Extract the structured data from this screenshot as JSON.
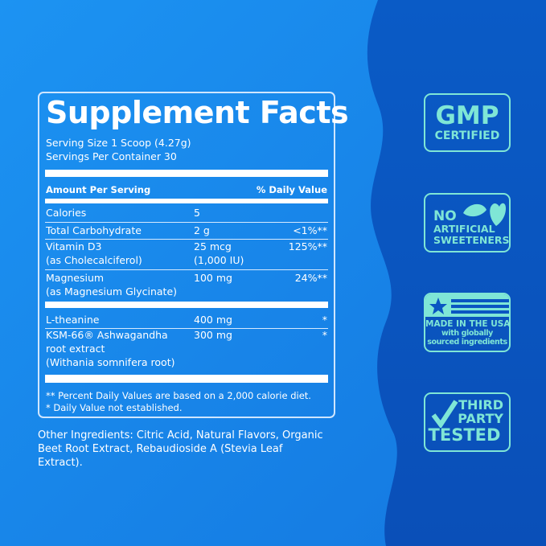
{
  "colors": {
    "background": "#1b8ff0",
    "wave": "#0a56c2",
    "badge": "#7fe6d6"
  },
  "facts": {
    "title": "Supplement Facts",
    "serving_size": "Serving Size 1 Scoop (4.27g)",
    "servings_per_container": "Servings Per Container 30",
    "header_amount": "Amount Per Serving",
    "header_dv": "% Daily Value",
    "rows": [
      {
        "name": "Calories",
        "amount": "5",
        "dv": ""
      },
      {
        "name": "Total Carbohydrate",
        "amount": "2 g",
        "dv": "<1%**"
      },
      {
        "name": "Vitamin D3",
        "name2": "(as Cholecalciferol)",
        "amount": "25 mcg",
        "amount2": "(1,000 IU)",
        "dv": "125%**"
      },
      {
        "name": "Magnesium",
        "name2": "(as Magnesium Glycinate)",
        "amount": "100 mg",
        "dv": "24%**"
      },
      {
        "name": "L-theanine",
        "amount": "400 mg",
        "dv": "*"
      },
      {
        "name": "KSM-66® Ashwagandha",
        "name2": "root extract",
        "name3": "(Withania somnifera root)",
        "amount": "300 mg",
        "dv": "*"
      }
    ],
    "footnote1": "** Percent Daily Values are based on a 2,000 calorie diet.",
    "footnote2": "* Daily Value not established."
  },
  "other_ingredients": "Other Ingredients: Citric Acid, Natural Flavors, Organic Beet Root Extract, Rebaudioside A (Stevia Leaf Extract).",
  "badges": {
    "gmp": {
      "line1": "GMP",
      "line2": "CERTIFIED"
    },
    "sweeteners": {
      "line1": "NO",
      "line2": "ARTIFICIAL",
      "line3": "SWEETENERS",
      "icon": "leaves-icon"
    },
    "usa": {
      "line1": "MADE IN THE USA",
      "line2": "with globally",
      "line3": "sourced ingredients",
      "icon": "flag-icon"
    },
    "tested": {
      "line1": "THIRD",
      "line2": "PARTY",
      "line3": "TESTED",
      "icon": "checkmark-icon"
    }
  }
}
